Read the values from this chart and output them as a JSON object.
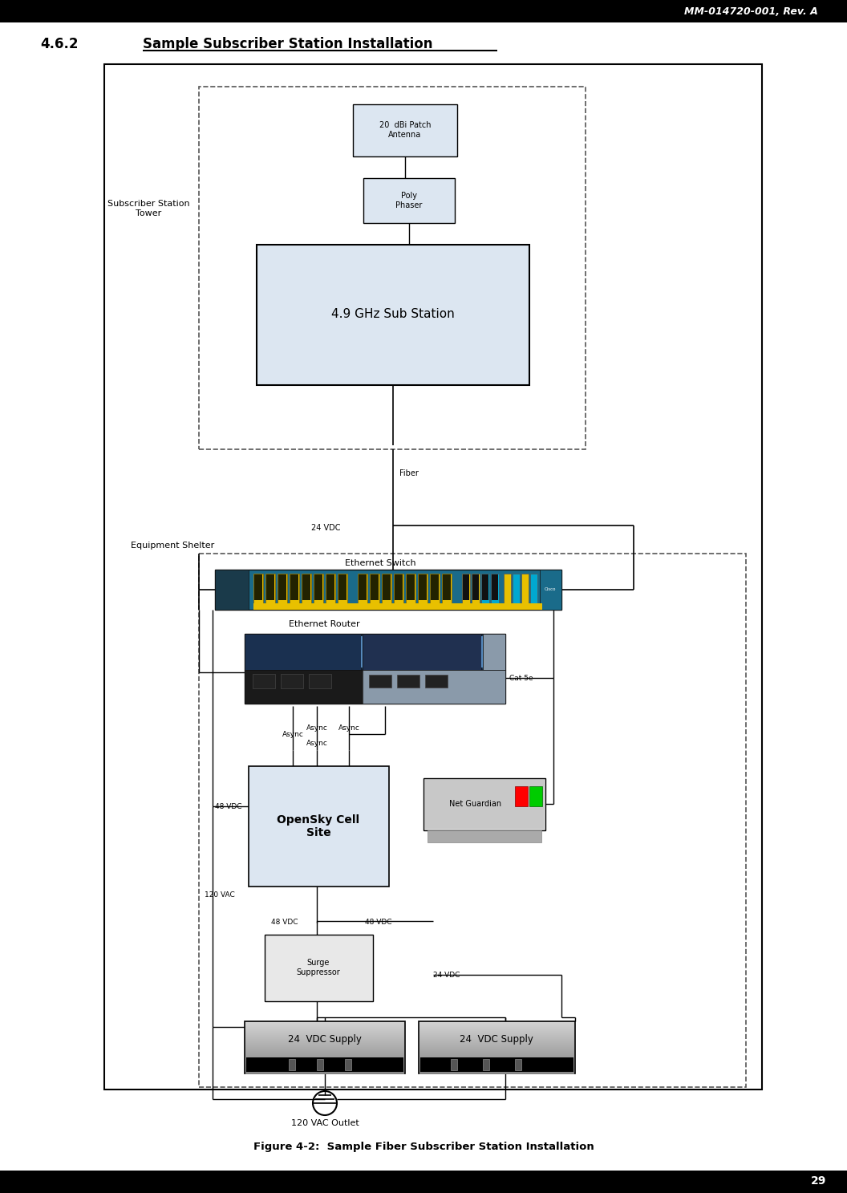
{
  "title_header": "MM-014720-001, Rev. A",
  "section_title": "4.6.2",
  "section_text": "Sample Subscriber Station Installation",
  "figure_caption": "Figure 4-2:  Sample Fiber Subscriber Station Installation",
  "page_number": "29",
  "bg_color": "#ffffff"
}
